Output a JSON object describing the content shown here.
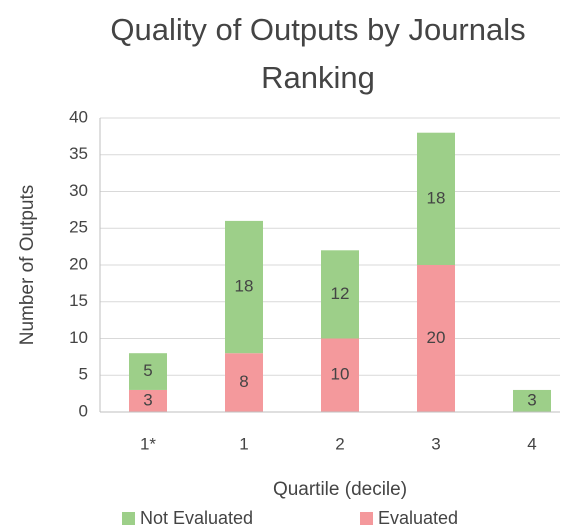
{
  "chart_data": {
    "type": "stacked_bar",
    "title": "Quality of Outputs by Journals Ranking",
    "x_label": "Quartile (decile)",
    "y_label": "Number of Outputs",
    "categories": [
      "1*",
      "1",
      "2",
      "3",
      "4"
    ],
    "series": [
      {
        "name": "Evaluated",
        "color": "#f4999c",
        "values": [
          3,
          8,
          10,
          20,
          0
        ]
      },
      {
        "name": "Not Evaluated",
        "color": "#9dcf89",
        "values": [
          5,
          18,
          12,
          18,
          3
        ]
      }
    ],
    "ylim": [
      0,
      40
    ],
    "yticks": [
      0,
      5,
      10,
      15,
      20,
      25,
      30,
      35,
      40
    ],
    "grid": true
  }
}
